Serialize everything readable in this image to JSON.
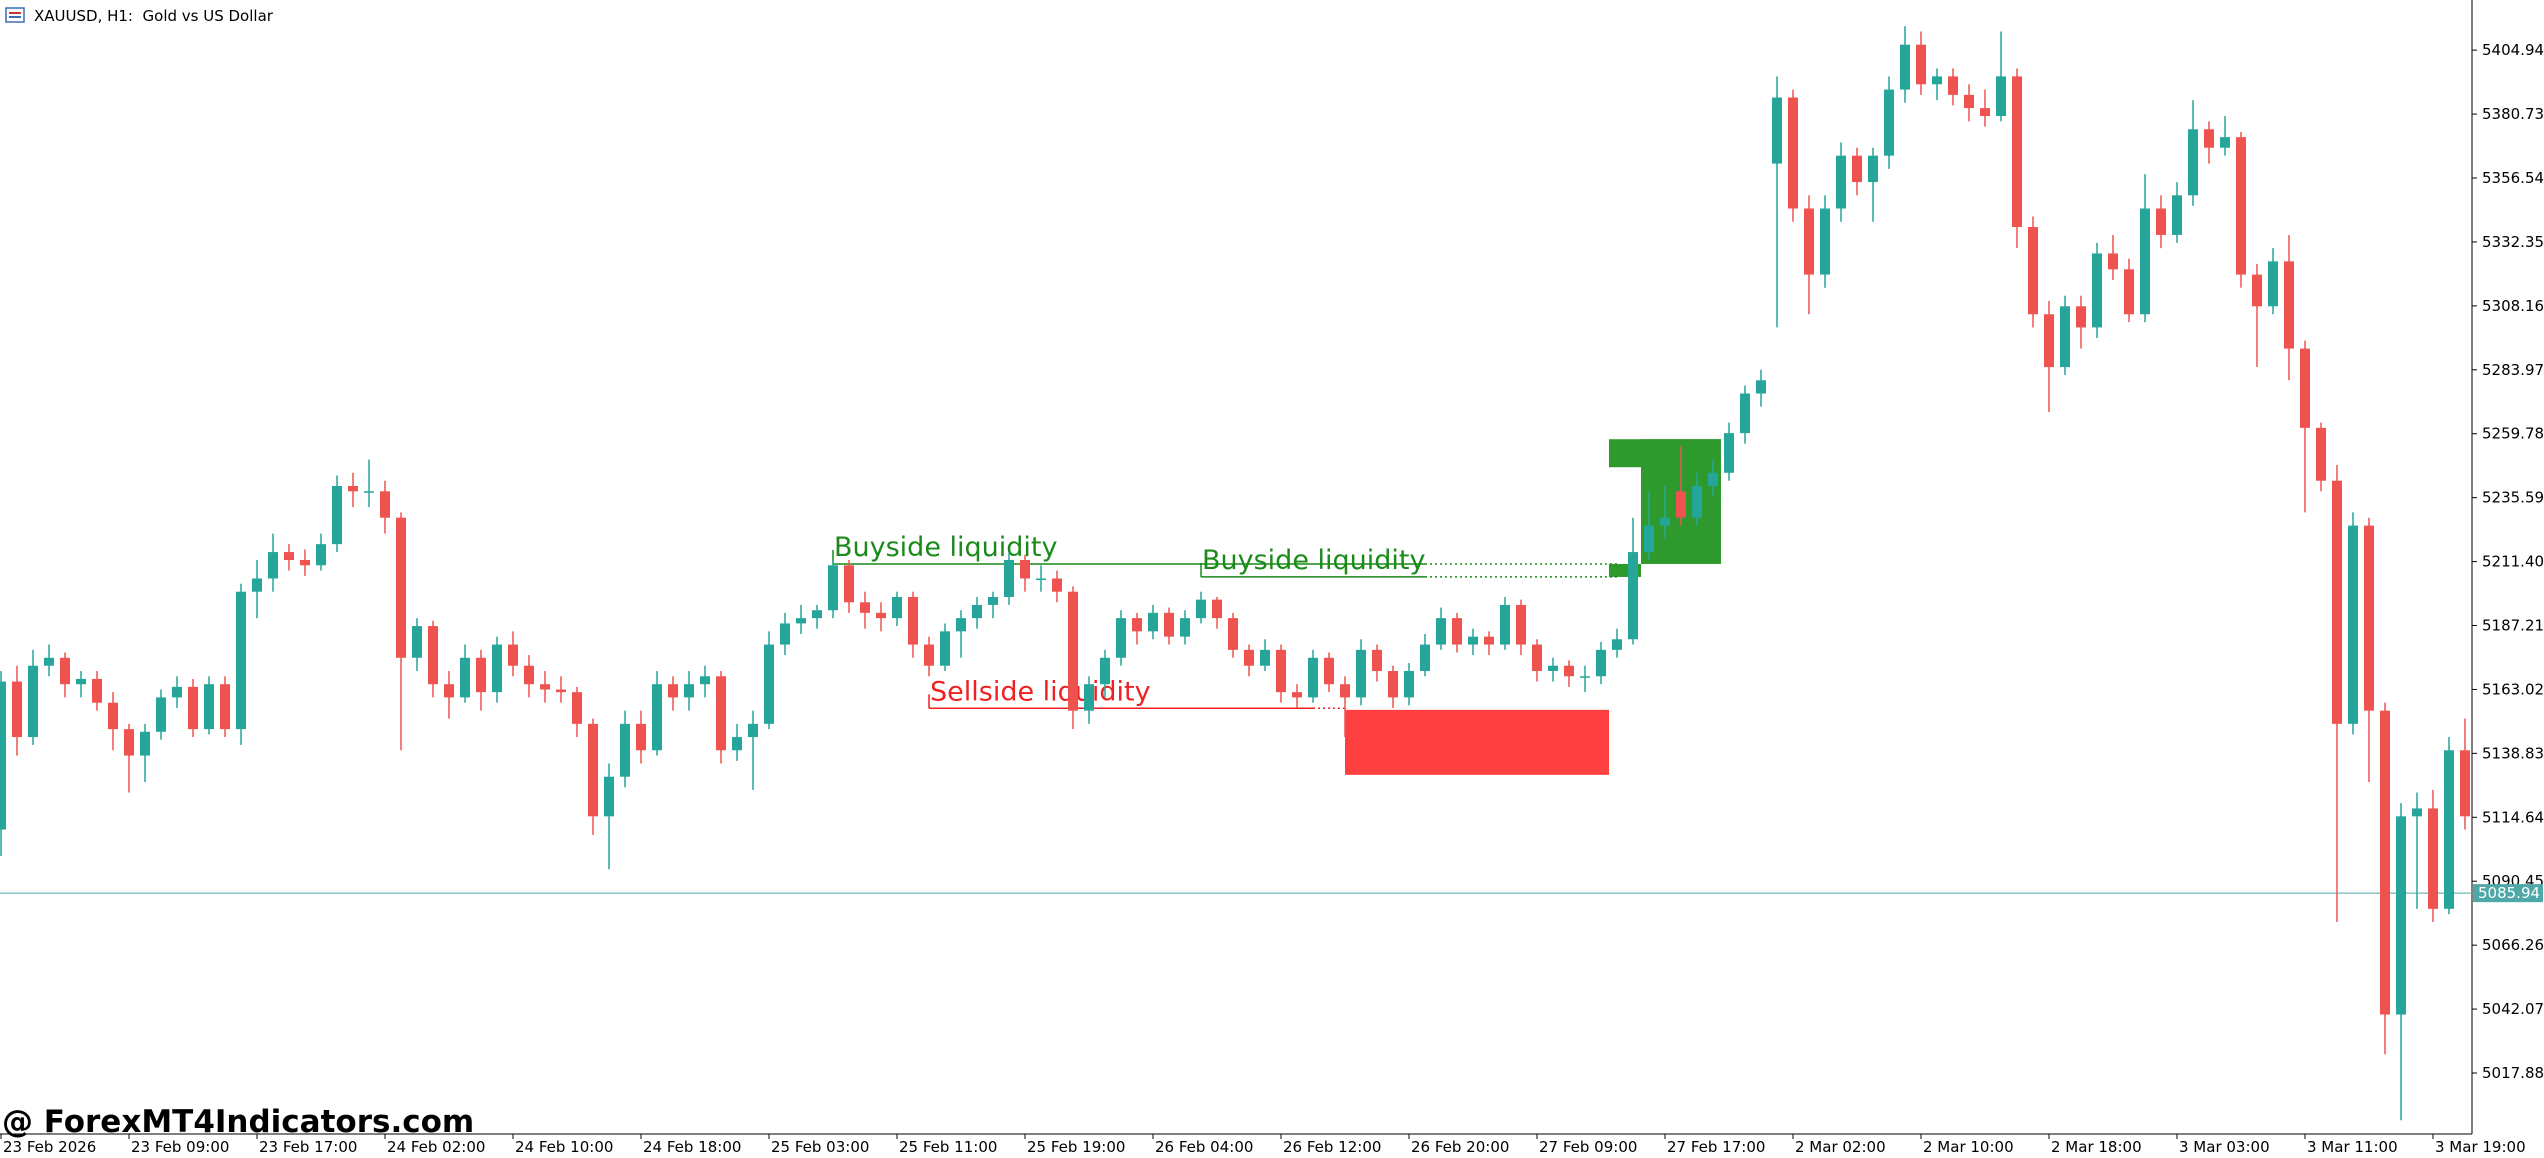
{
  "chart_data": {
    "type": "candlestick",
    "title": "XAUUSD, H1:  Gold vs US Dollar",
    "watermark": "@ ForexMT4Indicators.com",
    "bull_color": "#26a69a",
    "bear_color": "#ef5350",
    "ylim": [
      4994.8,
      5423.9
    ],
    "yticks": [
      5404.94,
      5380.73,
      5356.54,
      5332.35,
      5308.16,
      5283.97,
      5259.78,
      5235.59,
      {
        "value": 5211.4,
        "label": "5211.40"
      },
      5187.21,
      5163.02,
      5138.83,
      5114.64,
      5090.45,
      5066.26,
      5042.07,
      5017.88
    ],
    "current_price": 5085.94,
    "current_price_color": "#4fa8a8",
    "categories": [
      "23 Feb 2026",
      null,
      null,
      null,
      null,
      null,
      null,
      null,
      "23 Feb 09:00",
      null,
      null,
      null,
      null,
      null,
      null,
      null,
      "23 Feb 17:00",
      null,
      null,
      null,
      null,
      null,
      null,
      null,
      "24 Feb 02:00",
      null,
      null,
      null,
      null,
      null,
      null,
      null,
      "24 Feb 10:00",
      null,
      null,
      null,
      null,
      null,
      null,
      null,
      "24 Feb 18:00",
      null,
      null,
      null,
      null,
      null,
      null,
      null,
      "25 Feb 03:00",
      null,
      null,
      null,
      null,
      null,
      null,
      null,
      "25 Feb 11:00",
      null,
      null,
      null,
      null,
      null,
      null,
      null,
      "25 Feb 19:00",
      null,
      null,
      null,
      null,
      null,
      null,
      null,
      "26 Feb 04:00",
      null,
      null,
      null,
      null,
      null,
      null,
      null,
      "26 Feb 12:00",
      null,
      null,
      null,
      null,
      null,
      null,
      null,
      "26 Feb 20:00",
      null,
      null,
      null,
      null,
      null,
      null,
      null,
      "27 Feb 09:00",
      null,
      null,
      null,
      null,
      null,
      null,
      null,
      "27 Feb 17:00",
      null,
      null,
      null,
      null,
      null,
      null,
      null,
      "2 Mar 02:00",
      null,
      null,
      null,
      null,
      null,
      null,
      null,
      "2 Mar 10:00",
      null,
      null,
      null,
      null,
      null,
      null,
      null,
      "2 Mar 18:00",
      null,
      null,
      null,
      null,
      null,
      null,
      null,
      "3 Mar 03:00",
      null,
      null,
      null,
      null,
      null,
      null,
      null,
      "3 Mar 11:00",
      null,
      null,
      null,
      null,
      null,
      null,
      null,
      "3 Mar 19:00",
      null,
      null
    ],
    "open": [
      5110,
      5166,
      5145,
      5172,
      5175,
      5165,
      5167,
      5158,
      5148,
      5138,
      5147,
      5160,
      5164,
      5148,
      5165,
      5148,
      5200,
      5205,
      5215,
      5212,
      5210,
      5218,
      5240,
      5238,
      5238,
      5228,
      5175,
      5187,
      5165,
      5160,
      5175,
      5162,
      5180,
      5172,
      5165,
      5163,
      5162,
      5150,
      5115,
      5130,
      5150,
      5140,
      5165,
      5160,
      5165,
      5168,
      5140,
      5145,
      5150,
      5180,
      5188,
      5190,
      5193,
      5210,
      5196,
      5192,
      5190,
      5198,
      5180,
      5172,
      5185,
      5190,
      5195,
      5198,
      5212,
      5205,
      5205,
      5200,
      5155,
      5165,
      5175,
      5190,
      5185,
      5192,
      5183,
      5190,
      5197,
      5190,
      5178,
      5172,
      5178,
      5162,
      5160,
      5175,
      5165,
      5160,
      5178,
      5170,
      5160,
      5170,
      5180,
      5190,
      5180,
      5183,
      5180,
      5195,
      5180,
      5170,
      5172,
      5168,
      5168,
      5178,
      5182,
      5215,
      5225,
      5238,
      5228,
      5240,
      5245,
      5260,
      5275,
      5362,
      5387,
      5345,
      5320,
      5345,
      5365,
      5355,
      5365,
      5390,
      5407,
      5392,
      5395,
      5388,
      5383,
      5380,
      5395,
      5338,
      5305,
      5285,
      5308,
      5300,
      5328,
      5322,
      5305,
      5345,
      5335,
      5350,
      5375,
      5368,
      5372,
      5320,
      5308,
      5325,
      5292,
      5262,
      5242,
      5150,
      5225,
      5155,
      5040,
      5115,
      5118,
      5080,
      5140
    ],
    "high": [
      5170,
      5172,
      5178,
      5180,
      5177,
      5170,
      5170,
      5162,
      5150,
      5150,
      5163,
      5168,
      5167,
      5168,
      5168,
      5203,
      5212,
      5222,
      5218,
      5216,
      5222,
      5244,
      5245,
      5250,
      5242,
      5230,
      5190,
      5189,
      5170,
      5180,
      5178,
      5183,
      5185,
      5176,
      5170,
      5168,
      5164,
      5152,
      5135,
      5155,
      5155,
      5170,
      5168,
      5170,
      5172,
      5170,
      5150,
      5155,
      5185,
      5192,
      5195,
      5195,
      5212,
      5212,
      5200,
      5196,
      5200,
      5200,
      5183,
      5188,
      5193,
      5198,
      5200,
      5215,
      5214,
      5210,
      5208,
      5202,
      5168,
      5178,
      5193,
      5192,
      5195,
      5194,
      5193,
      5200,
      5198,
      5192,
      5180,
      5182,
      5180,
      5165,
      5178,
      5177,
      5168,
      5182,
      5180,
      5172,
      5173,
      5184,
      5194,
      5192,
      5186,
      5185,
      5198,
      5197,
      5182,
      5175,
      5174,
      5172,
      5181,
      5186,
      5228,
      5238,
      5240,
      5255,
      5245,
      5250,
      5264,
      5278,
      5284,
      5395,
      5390,
      5350,
      5350,
      5370,
      5368,
      5368,
      5395,
      5414,
      5412,
      5398,
      5398,
      5392,
      5390,
      5412,
      5398,
      5342,
      5310,
      5312,
      5312,
      5332,
      5335,
      5326,
      5358,
      5350,
      5355,
      5386,
      5378,
      5380,
      5374,
      5324,
      5330,
      5335,
      5295,
      5264,
      5248,
      5230,
      5228,
      5158,
      5120,
      5124,
      5125,
      5145,
      5152
    ],
    "low": [
      5100,
      5138,
      5142,
      5168,
      5160,
      5160,
      5155,
      5140,
      5124,
      5128,
      5144,
      5156,
      5145,
      5146,
      5145,
      5142,
      5190,
      5200,
      5208,
      5206,
      5208,
      5215,
      5232,
      5232,
      5222,
      5140,
      5170,
      5160,
      5152,
      5158,
      5155,
      5158,
      5168,
      5160,
      5158,
      5158,
      5145,
      5108,
      5095,
      5126,
      5135,
      5138,
      5155,
      5155,
      5160,
      5135,
      5136,
      5125,
      5148,
      5176,
      5184,
      5186,
      5190,
      5192,
      5186,
      5185,
      5187,
      5175,
      5168,
      5170,
      5175,
      5186,
      5190,
      5195,
      5200,
      5200,
      5196,
      5148,
      5150,
      5160,
      5172,
      5180,
      5182,
      5180,
      5180,
      5188,
      5186,
      5175,
      5168,
      5170,
      5158,
      5156,
      5158,
      5162,
      5145,
      5157,
      5166,
      5156,
      5157,
      5168,
      5178,
      5177,
      5176,
      5176,
      5178,
      5176,
      5166,
      5166,
      5164,
      5162,
      5165,
      5175,
      5180,
      5212,
      5220,
      5225,
      5225,
      5236,
      5242,
      5256,
      5270,
      5300,
      5340,
      5305,
      5315,
      5340,
      5350,
      5340,
      5360,
      5385,
      5388,
      5386,
      5384,
      5378,
      5376,
      5378,
      5330,
      5300,
      5268,
      5282,
      5292,
      5296,
      5318,
      5302,
      5302,
      5330,
      5332,
      5346,
      5362,
      5365,
      5315,
      5285,
      5305,
      5280,
      5230,
      5238,
      5075,
      5146,
      5128,
      5025,
      5000,
      5080,
      5075,
      5078,
      5110
    ],
    "close": [
      5166,
      5145,
      5172,
      5175,
      5165,
      5167,
      5158,
      5148,
      5138,
      5147,
      5160,
      5164,
      5148,
      5165,
      5148,
      5200,
      5205,
      5215,
      5212,
      5210,
      5218,
      5240,
      5238,
      5238,
      5228,
      5175,
      5187,
      5165,
      5160,
      5175,
      5162,
      5180,
      5172,
      5165,
      5163,
      5162,
      5150,
      5115,
      5130,
      5150,
      5140,
      5165,
      5160,
      5165,
      5168,
      5140,
      5145,
      5150,
      5180,
      5188,
      5190,
      5193,
      5210,
      5196,
      5192,
      5190,
      5198,
      5180,
      5172,
      5185,
      5190,
      5195,
      5198,
      5212,
      5205,
      5205,
      5200,
      5155,
      5165,
      5175,
      5190,
      5185,
      5192,
      5183,
      5190,
      5197,
      5190,
      5178,
      5172,
      5178,
      5162,
      5160,
      5175,
      5165,
      5160,
      5178,
      5170,
      5160,
      5170,
      5180,
      5190,
      5180,
      5183,
      5180,
      5195,
      5180,
      5170,
      5172,
      5168,
      5168,
      5178,
      5182,
      5215,
      5225,
      5228,
      5228,
      5240,
      5245,
      5260,
      5275,
      5280,
      5387,
      5345,
      5320,
      5345,
      5365,
      5355,
      5365,
      5390,
      5407,
      5392,
      5395,
      5388,
      5383,
      5380,
      5395,
      5338,
      5305,
      5285,
      5308,
      5300,
      5328,
      5322,
      5305,
      5345,
      5335,
      5350,
      5375,
      5368,
      5372,
      5320,
      5308,
      5325,
      5292,
      5262,
      5242,
      5150,
      5225,
      5155,
      5040,
      5115,
      5118,
      5080,
      5140,
      5115
    ],
    "annotations": [
      {
        "text": "Buyside liquidity",
        "level": 5210.5,
        "color": "#1a8a1a"
      },
      {
        "text": "Buyside liquidity",
        "level": 5205.6,
        "color": "#1a8a1a"
      },
      {
        "text": "Sellside liquidity",
        "level": 5155.9,
        "color": "#ee2222"
      }
    ],
    "zones": [
      {
        "top": 5257.7,
        "bottom": 5210.5,
        "color": "#2e9a2e"
      },
      {
        "top": 5155.3,
        "bottom": 5130.7,
        "color": "#ff4040"
      }
    ]
  }
}
